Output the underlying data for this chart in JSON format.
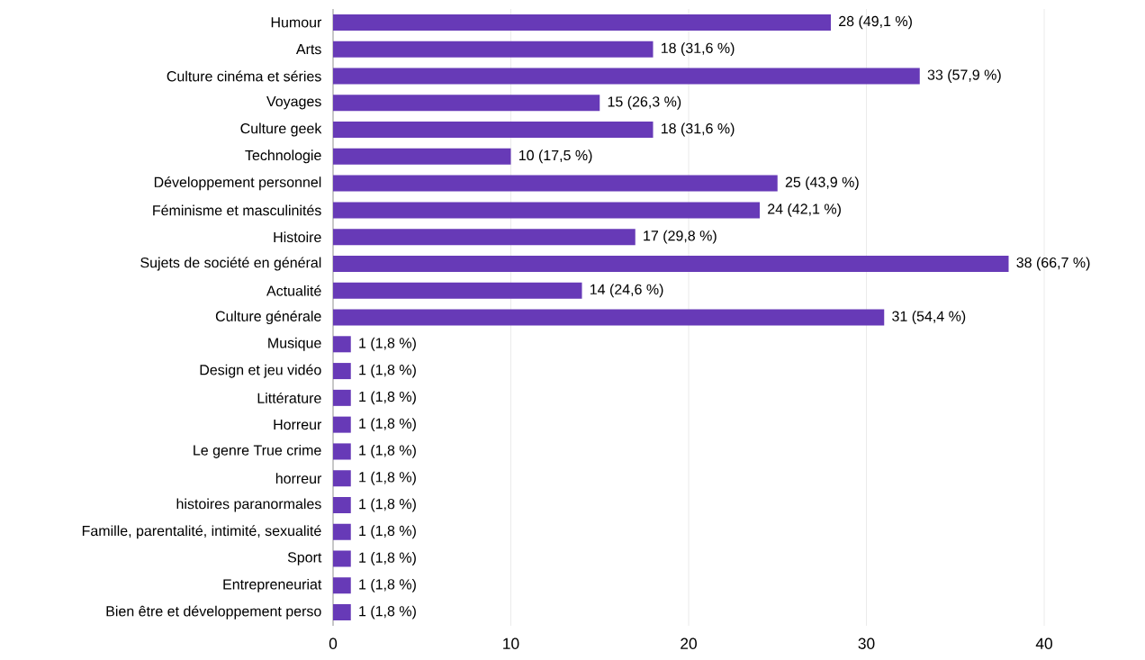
{
  "chart_data": {
    "type": "bar",
    "orientation": "horizontal",
    "color": "#673ab7",
    "categories": [
      "Humour",
      "Arts",
      "Culture cinéma et séries",
      "Voyages",
      "Culture geek",
      "Technologie",
      "Développement personnel",
      "Féminisme et masculinités",
      "Histoire",
      "Sujets de société en général",
      "Actualité",
      "Culture générale",
      "Musique",
      "Design et jeu vidéo",
      "Littérature",
      "Horreur",
      "Le genre True crime",
      "horreur",
      "histoires paranormales",
      "Famille, parentalité, intimité, sexualité",
      "Sport",
      "Entrepreneuriat",
      "Bien être et développement perso"
    ],
    "values": [
      28,
      18,
      33,
      15,
      18,
      10,
      25,
      24,
      17,
      38,
      14,
      31,
      1,
      1,
      1,
      1,
      1,
      1,
      1,
      1,
      1,
      1,
      1
    ],
    "value_labels": [
      "28 (49,1 %)",
      "18 (31,6 %)",
      "33 (57,9 %)",
      "15 (26,3 %)",
      "18 (31,6 %)",
      "10 (17,5 %)",
      "25 (43,9 %)",
      "24 (42,1 %)",
      "17 (29,8 %)",
      "38 (66,7 %)",
      "14 (24,6 %)",
      "31 (54,4 %)",
      "1 (1,8 %)",
      "1 (1,8 %)",
      "1 (1,8 %)",
      "1 (1,8 %)",
      "1 (1,8 %)",
      "1 (1,8 %)",
      "1 (1,8 %)",
      "1 (1,8 %)",
      "1 (1,8 %)",
      "1 (1,8 %)",
      "1 (1,8 %)"
    ],
    "xlim": [
      0,
      40
    ],
    "xticks": [
      0,
      10,
      20,
      30,
      40
    ],
    "grid": "x"
  }
}
